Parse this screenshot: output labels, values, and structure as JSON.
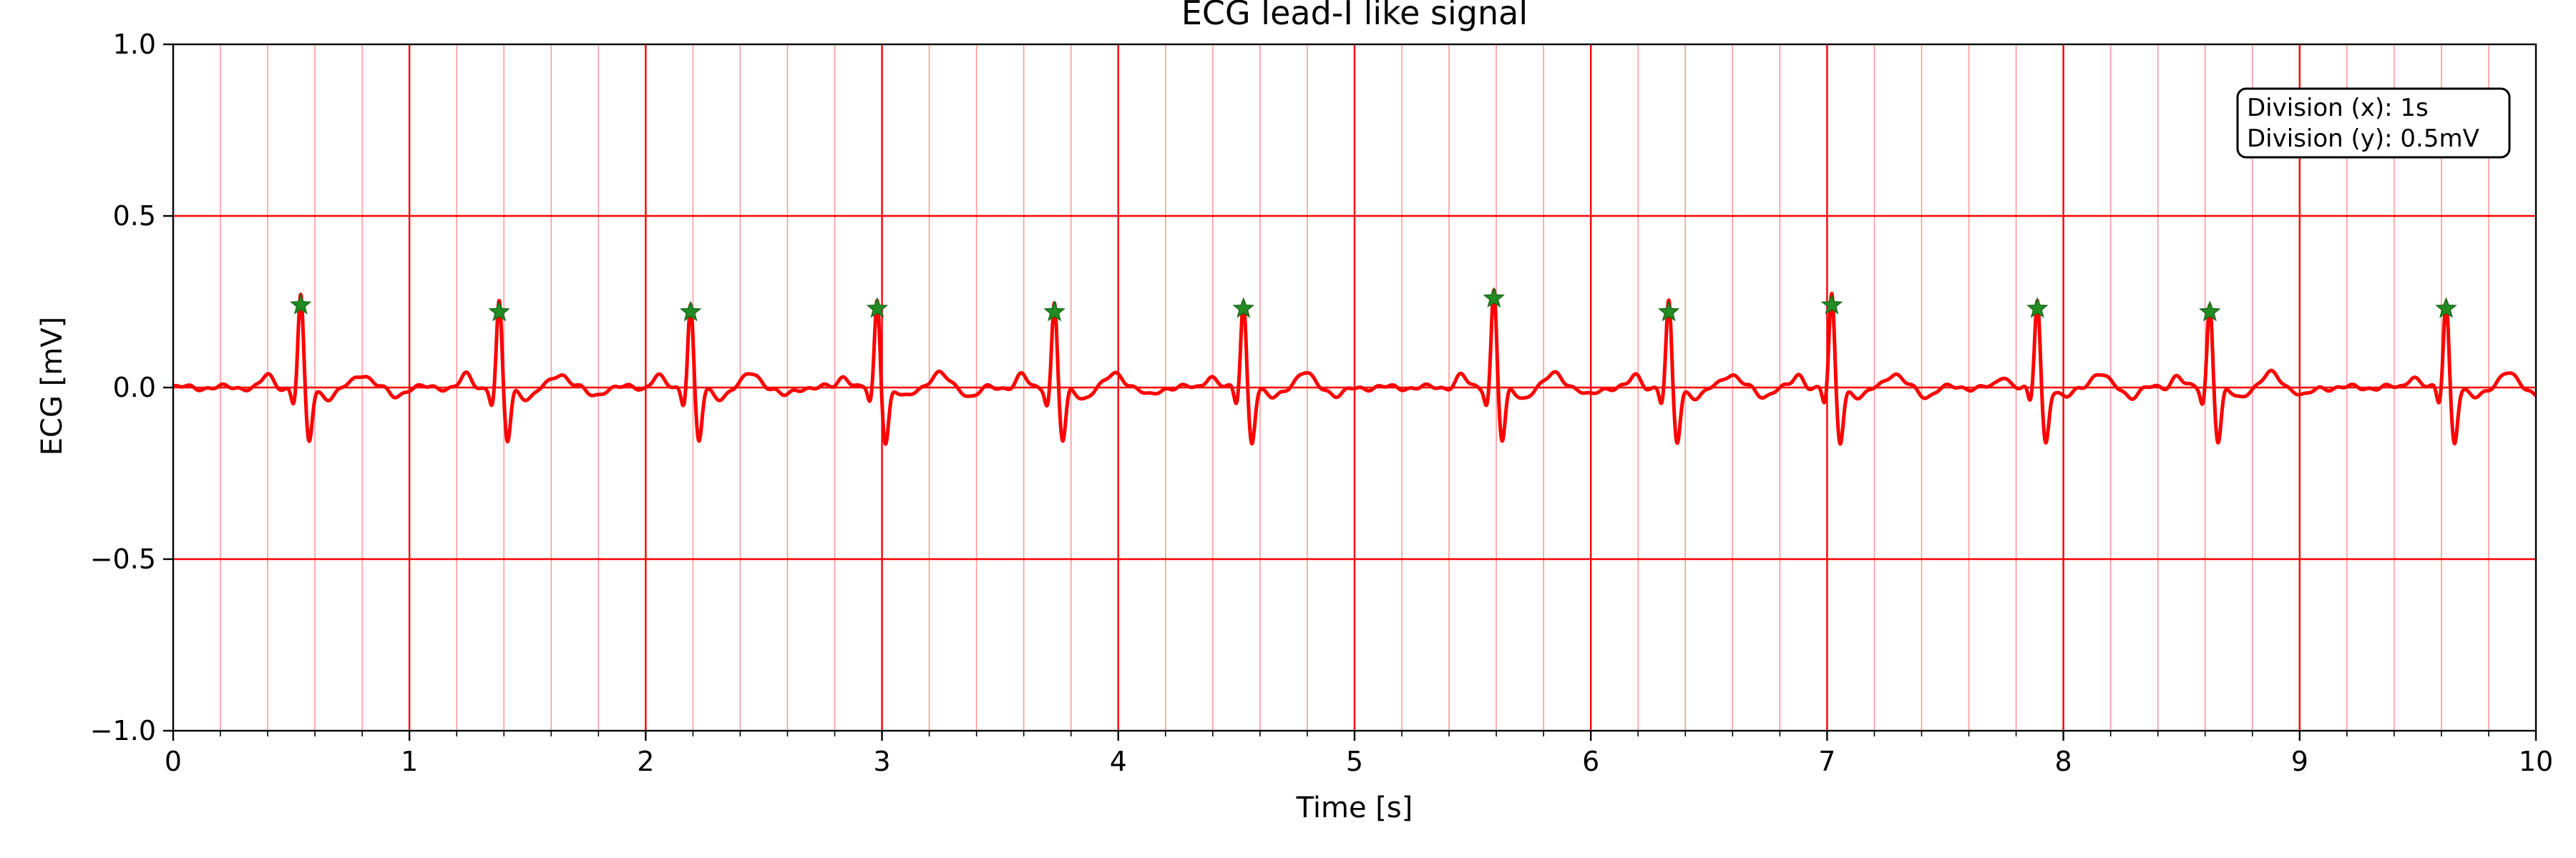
{
  "chart_data": {
    "type": "line",
    "title": "ECG lead-I like signal",
    "xlabel": "Time [s]",
    "ylabel": "ECG [mV]",
    "xlim": [
      0,
      10
    ],
    "ylim": [
      -1.0,
      1.0
    ],
    "x_ticks": [
      "0",
      "1",
      "2",
      "3",
      "4",
      "5",
      "6",
      "7",
      "8",
      "9",
      "10"
    ],
    "y_ticks": [
      "1.0",
      "0.5",
      "0.0",
      "−0.5",
      "−1.0"
    ],
    "y_tick_values": [
      1.0,
      0.5,
      0.0,
      -0.5,
      -1.0
    ],
    "grid": {
      "major_x_step": 1,
      "major_y_step": 0.5,
      "minor_x_step": 0.2,
      "major_color": "#ff0000",
      "minor_color": "#ff9999"
    },
    "annotation": {
      "lines": [
        "Division (x): 1s",
        "Division (y): 0.5mV"
      ],
      "placement": "top-right"
    },
    "series": [
      {
        "color": "#ff0000",
        "beats": [
          {
            "t": 0.54,
            "peak": 0.24
          },
          {
            "t": 1.38,
            "peak": 0.22
          },
          {
            "t": 2.19,
            "peak": 0.22
          },
          {
            "t": 2.98,
            "peak": 0.23
          },
          {
            "t": 3.73,
            "peak": 0.22
          },
          {
            "t": 4.53,
            "peak": 0.23
          },
          {
            "t": 5.59,
            "peak": 0.26
          },
          {
            "t": 6.33,
            "peak": 0.22
          },
          {
            "t": 7.02,
            "peak": 0.24
          },
          {
            "t": 7.89,
            "peak": 0.23
          },
          {
            "t": 8.62,
            "peak": 0.22
          },
          {
            "t": 9.62,
            "peak": 0.23
          }
        ]
      }
    ],
    "peak_marker": {
      "shape": "star",
      "color": "#228b22"
    }
  }
}
